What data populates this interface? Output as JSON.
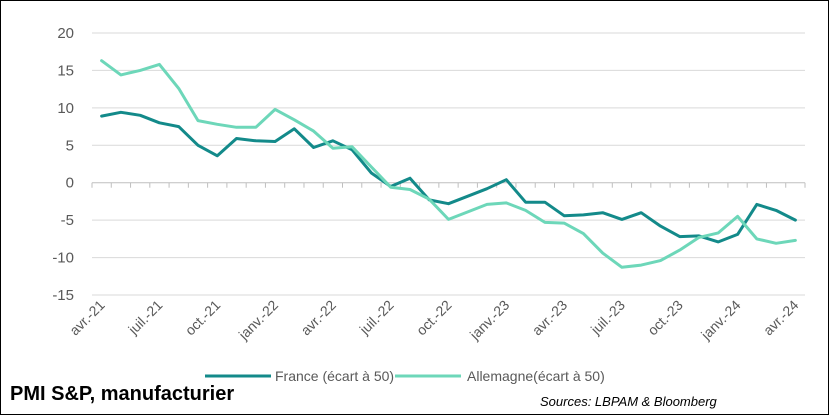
{
  "chart_data": {
    "type": "line",
    "title": "PMI S&P, manufacturier",
    "source": "Sources: LBPAM & Bloomberg",
    "xlabel": "",
    "ylabel": "",
    "ylim": [
      -15,
      20
    ],
    "yticks": [
      20,
      15,
      10,
      5,
      0,
      -5,
      -10,
      -15
    ],
    "grid": "horizontal",
    "legend_position": "bottom",
    "x": [
      "avr.-21",
      "mai-21",
      "juin-21",
      "juil.-21",
      "août-21",
      "sept.-21",
      "oct.-21",
      "nov.-21",
      "déc.-21",
      "janv.-22",
      "févr.-22",
      "mars-22",
      "avr.-22",
      "mai-22",
      "juin-22",
      "juil.-22",
      "août-22",
      "sept.-22",
      "oct.-22",
      "nov.-22",
      "déc.-22",
      "janv.-23",
      "févr.-23",
      "mars-23",
      "avr.-23",
      "mai-23",
      "juin-23",
      "juil.-23",
      "août-23",
      "sept.-23",
      "oct.-23",
      "nov.-23",
      "déc.-23",
      "janv.-24",
      "févr.-24",
      "mars-24",
      "avr.-24"
    ],
    "x_tick_labels": [
      {
        "index": 0,
        "label": "avr.-21"
      },
      {
        "index": 3,
        "label": "juil.-21"
      },
      {
        "index": 6,
        "label": "oct.-21"
      },
      {
        "index": 9,
        "label": "janv.-22"
      },
      {
        "index": 12,
        "label": "avr.-22"
      },
      {
        "index": 15,
        "label": "juil.-22"
      },
      {
        "index": 18,
        "label": "oct.-22"
      },
      {
        "index": 21,
        "label": "janv.-23"
      },
      {
        "index": 24,
        "label": "avr.-23"
      },
      {
        "index": 27,
        "label": "juil.-23"
      },
      {
        "index": 30,
        "label": "oct.-23"
      },
      {
        "index": 33,
        "label": "janv.-24"
      },
      {
        "index": 36,
        "label": "avr.-24"
      }
    ],
    "series": [
      {
        "name": "France (écart à 50)",
        "color": "#138a8a",
        "values": [
          8.9,
          9.4,
          9.0,
          8.0,
          7.5,
          5.0,
          3.6,
          5.9,
          5.6,
          5.5,
          7.2,
          4.7,
          5.6,
          4.4,
          1.3,
          -0.5,
          0.6,
          -2.3,
          -2.8,
          -1.8,
          -0.8,
          0.4,
          -2.6,
          -2.6,
          -4.4,
          -4.3,
          -4.0,
          -4.9,
          -4.0,
          -5.8,
          -7.2,
          -7.1,
          -7.9,
          -6.9,
          -2.9,
          -3.7,
          -5.0
        ]
      },
      {
        "name": "Allemagne(écart à 50)",
        "color": "#6dd7b9",
        "values": [
          16.3,
          14.4,
          15.0,
          15.8,
          12.6,
          8.3,
          7.8,
          7.4,
          7.4,
          9.8,
          8.4,
          6.9,
          4.6,
          4.8,
          2.1,
          -0.6,
          -0.9,
          -2.2,
          -4.9,
          -3.9,
          -2.9,
          -2.7,
          -3.7,
          -5.3,
          -5.4,
          -6.8,
          -9.4,
          -11.3,
          -11.0,
          -10.4,
          -9.0,
          -7.3,
          -6.7,
          -4.5,
          -7.5,
          -8.1,
          -7.7
        ]
      }
    ]
  }
}
